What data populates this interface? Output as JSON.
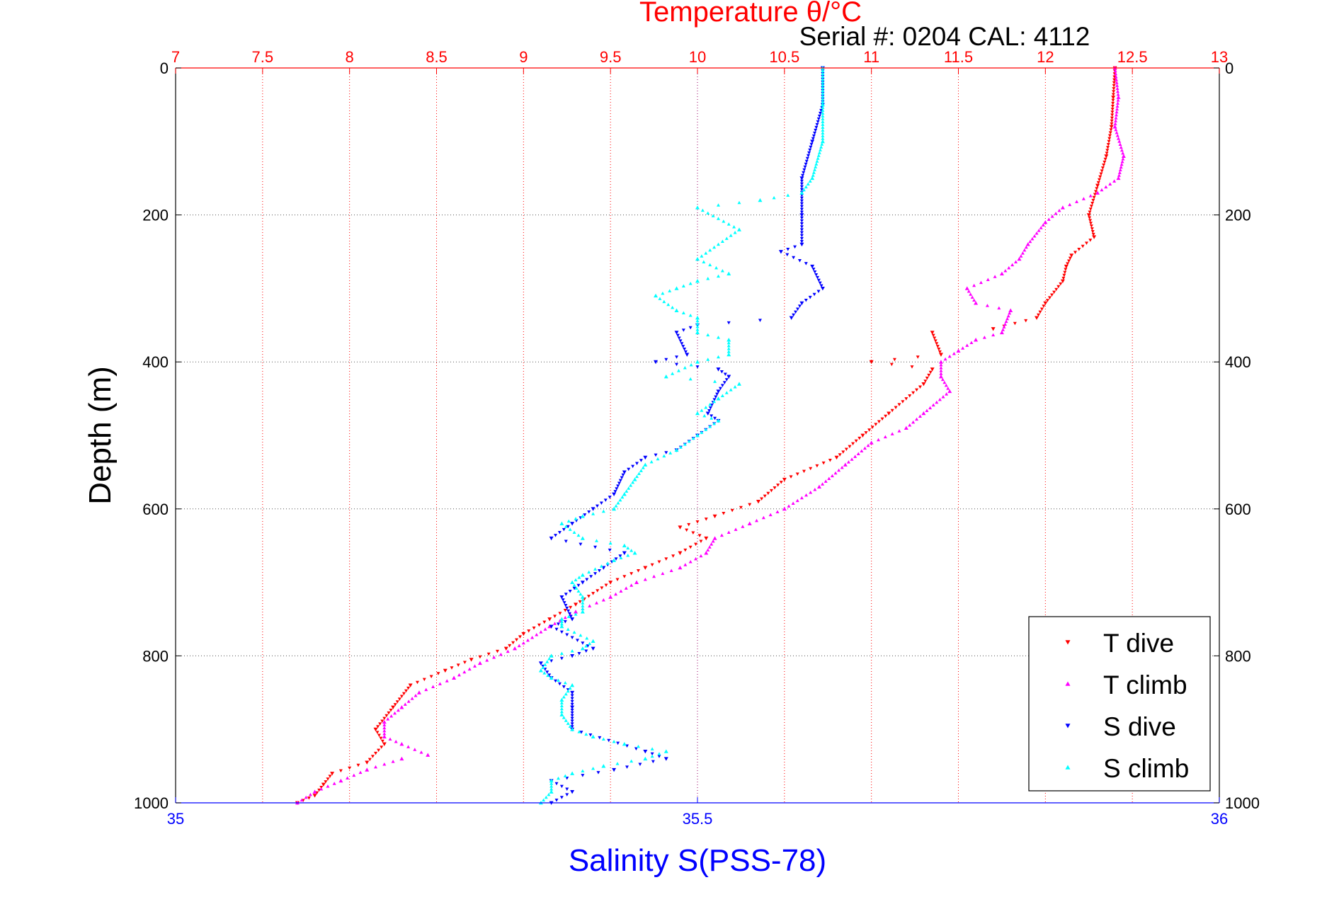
{
  "chart_data": {
    "type": "scatter",
    "title": "Temperature θ/°C",
    "subtitle": "Serial #: 0204  CAL: 4112",
    "ylabel": "Depth (m)",
    "xlabel_bottom": "Salinity S(PSS-78)",
    "xlabel_top": "Temperature θ/°C",
    "ylim": [
      0,
      1000
    ],
    "y_reversed": true,
    "y_ticks": [
      0,
      200,
      400,
      600,
      800,
      1000
    ],
    "x_top": {
      "range": [
        7,
        13
      ],
      "ticks": [
        7,
        7.5,
        8,
        8.5,
        9,
        9.5,
        10,
        10.5,
        11,
        11.5,
        12,
        12.5,
        13
      ],
      "tick_labels": [
        "7",
        "7.5",
        "8",
        "8.5",
        "9",
        "9.5",
        "10",
        "10.5",
        "11",
        "11.5",
        "12",
        "12.5",
        "13"
      ]
    },
    "x_bottom": {
      "range": [
        35,
        36
      ],
      "ticks": [
        35,
        35.5,
        36
      ],
      "tick_labels": [
        "35",
        "35.5",
        "36"
      ]
    },
    "grid": true,
    "legend_position": "bottom-right",
    "colors": {
      "title": "#ff0000",
      "salinity_axis": "#0000ff",
      "grid": "#555555",
      "t_grid": "#ff0000"
    },
    "series": [
      {
        "name": "T dive",
        "axis": "top",
        "color": "#ff0000",
        "marker": "triangle-down",
        "points": [
          [
            12.4,
            0
          ],
          [
            12.39,
            40
          ],
          [
            12.38,
            80
          ],
          [
            12.35,
            120
          ],
          [
            12.3,
            160
          ],
          [
            12.25,
            200
          ],
          [
            12.28,
            230
          ],
          [
            12.15,
            255
          ],
          [
            12.12,
            270
          ],
          [
            12.1,
            290
          ],
          [
            12.0,
            320
          ],
          [
            11.95,
            340
          ],
          [
            11.7,
            355
          ],
          [
            11.35,
            360
          ],
          [
            11.4,
            390
          ],
          [
            11.0,
            400
          ],
          [
            11.35,
            410
          ],
          [
            11.3,
            430
          ],
          [
            11.1,
            470
          ],
          [
            10.95,
            500
          ],
          [
            10.8,
            530
          ],
          [
            10.5,
            560
          ],
          [
            10.35,
            590
          ],
          [
            10.1,
            610
          ],
          [
            9.9,
            625
          ],
          [
            10.05,
            640
          ],
          [
            9.9,
            660
          ],
          [
            9.7,
            680
          ],
          [
            9.5,
            700
          ],
          [
            9.3,
            730
          ],
          [
            9.15,
            750
          ],
          [
            9.0,
            770
          ],
          [
            8.9,
            790
          ],
          [
            8.7,
            805
          ],
          [
            8.55,
            820
          ],
          [
            8.35,
            840
          ],
          [
            8.25,
            870
          ],
          [
            8.15,
            900
          ],
          [
            8.2,
            920
          ],
          [
            8.1,
            945
          ],
          [
            7.9,
            960
          ],
          [
            7.85,
            975
          ],
          [
            7.8,
            990
          ],
          [
            7.7,
            1000
          ]
        ]
      },
      {
        "name": "T climb",
        "axis": "top",
        "color": "#ff00ff",
        "marker": "triangle-up",
        "points": [
          [
            12.4,
            0
          ],
          [
            12.42,
            40
          ],
          [
            12.4,
            80
          ],
          [
            12.45,
            120
          ],
          [
            12.42,
            150
          ],
          [
            12.3,
            170
          ],
          [
            12.1,
            190
          ],
          [
            12.0,
            210
          ],
          [
            11.9,
            240
          ],
          [
            11.85,
            260
          ],
          [
            11.75,
            280
          ],
          [
            11.55,
            300
          ],
          [
            11.6,
            320
          ],
          [
            11.8,
            330
          ],
          [
            11.75,
            360
          ],
          [
            11.6,
            370
          ],
          [
            11.5,
            385
          ],
          [
            11.4,
            400
          ],
          [
            11.4,
            420
          ],
          [
            11.45,
            440
          ],
          [
            11.3,
            470
          ],
          [
            11.2,
            490
          ],
          [
            11.0,
            510
          ],
          [
            10.85,
            540
          ],
          [
            10.7,
            570
          ],
          [
            10.5,
            600
          ],
          [
            10.3,
            620
          ],
          [
            10.1,
            640
          ],
          [
            10.05,
            660
          ],
          [
            9.9,
            680
          ],
          [
            9.65,
            700
          ],
          [
            9.5,
            720
          ],
          [
            9.3,
            740
          ],
          [
            9.15,
            760
          ],
          [
            8.95,
            790
          ],
          [
            8.75,
            810
          ],
          [
            8.6,
            830
          ],
          [
            8.4,
            850
          ],
          [
            8.3,
            870
          ],
          [
            8.2,
            890
          ],
          [
            8.2,
            910
          ],
          [
            8.3,
            920
          ],
          [
            8.45,
            935
          ],
          [
            8.3,
            940
          ],
          [
            8.1,
            955
          ],
          [
            7.95,
            970
          ],
          [
            7.8,
            985
          ],
          [
            7.7,
            1000
          ]
        ]
      },
      {
        "name": "S dive",
        "axis": "bottom",
        "color": "#0000ff",
        "marker": "triangle-down",
        "points": [
          [
            35.62,
            0
          ],
          [
            35.62,
            50
          ],
          [
            35.61,
            100
          ],
          [
            35.6,
            150
          ],
          [
            35.6,
            200
          ],
          [
            35.6,
            240
          ],
          [
            35.58,
            250
          ],
          [
            35.61,
            270
          ],
          [
            35.62,
            300
          ],
          [
            35.6,
            320
          ],
          [
            35.59,
            340
          ],
          [
            35.5,
            350
          ],
          [
            35.48,
            360
          ],
          [
            35.49,
            390
          ],
          [
            35.46,
            400
          ],
          [
            35.52,
            410
          ],
          [
            35.53,
            420
          ],
          [
            35.52,
            440
          ],
          [
            35.51,
            470
          ],
          [
            35.52,
            480
          ],
          [
            35.5,
            500
          ],
          [
            35.48,
            520
          ],
          [
            35.45,
            530
          ],
          [
            35.43,
            550
          ],
          [
            35.42,
            580
          ],
          [
            35.4,
            600
          ],
          [
            35.38,
            620
          ],
          [
            35.36,
            640
          ],
          [
            35.43,
            660
          ],
          [
            35.41,
            680
          ],
          [
            35.39,
            700
          ],
          [
            35.37,
            720
          ],
          [
            35.38,
            750
          ],
          [
            35.36,
            760
          ],
          [
            35.4,
            790
          ],
          [
            35.38,
            800
          ],
          [
            35.35,
            810
          ],
          [
            35.36,
            830
          ],
          [
            35.38,
            850
          ],
          [
            35.38,
            870
          ],
          [
            35.38,
            900
          ],
          [
            35.45,
            930
          ],
          [
            35.47,
            940
          ],
          [
            35.42,
            955
          ],
          [
            35.36,
            970
          ],
          [
            35.38,
            985
          ],
          [
            35.36,
            1000
          ]
        ]
      },
      {
        "name": "S climb",
        "axis": "bottom",
        "color": "#00ffff",
        "marker": "triangle-up",
        "points": [
          [
            35.62,
            0
          ],
          [
            35.62,
            50
          ],
          [
            35.62,
            100
          ],
          [
            35.61,
            150
          ],
          [
            35.6,
            170
          ],
          [
            35.56,
            180
          ],
          [
            35.5,
            190
          ],
          [
            35.54,
            220
          ],
          [
            35.5,
            260
          ],
          [
            35.53,
            280
          ],
          [
            35.5,
            290
          ],
          [
            35.48,
            300
          ],
          [
            35.46,
            310
          ],
          [
            35.48,
            330
          ],
          [
            35.5,
            340
          ],
          [
            35.5,
            360
          ],
          [
            35.53,
            370
          ],
          [
            35.53,
            390
          ],
          [
            35.5,
            400
          ],
          [
            35.47,
            420
          ],
          [
            35.54,
            430
          ],
          [
            35.52,
            450
          ],
          [
            35.5,
            470
          ],
          [
            35.52,
            480
          ],
          [
            35.5,
            500
          ],
          [
            35.48,
            520
          ],
          [
            35.45,
            540
          ],
          [
            35.44,
            560
          ],
          [
            35.43,
            580
          ],
          [
            35.42,
            600
          ],
          [
            35.39,
            610
          ],
          [
            35.37,
            620
          ],
          [
            35.39,
            640
          ],
          [
            35.43,
            650
          ],
          [
            35.44,
            660
          ],
          [
            35.42,
            670
          ],
          [
            35.39,
            690
          ],
          [
            35.38,
            700
          ],
          [
            35.39,
            720
          ],
          [
            35.39,
            740
          ],
          [
            35.37,
            750
          ],
          [
            35.37,
            760
          ],
          [
            35.4,
            780
          ],
          [
            35.39,
            790
          ],
          [
            35.36,
            800
          ],
          [
            35.35,
            820
          ],
          [
            35.36,
            830
          ],
          [
            35.38,
            840
          ],
          [
            35.37,
            860
          ],
          [
            35.37,
            880
          ],
          [
            35.38,
            900
          ],
          [
            35.4,
            910
          ],
          [
            35.43,
            920
          ],
          [
            35.47,
            930
          ],
          [
            35.45,
            940
          ],
          [
            35.41,
            950
          ],
          [
            35.38,
            960
          ],
          [
            35.36,
            970
          ],
          [
            35.36,
            985
          ],
          [
            35.35,
            1000
          ]
        ]
      }
    ]
  }
}
